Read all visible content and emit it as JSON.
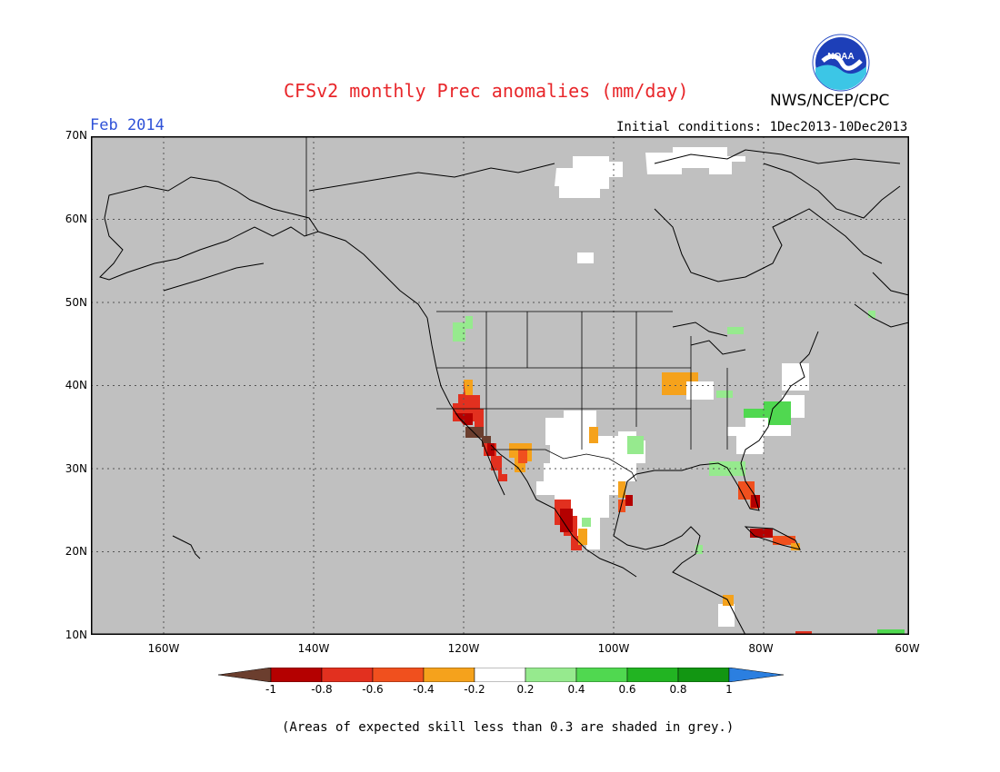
{
  "header": {
    "title": "CFSv2 monthly Prec anomalies (mm/day)",
    "agency": "NWS/NCEP/CPC",
    "logo_text": "NOAA",
    "valid_month": "Feb 2014",
    "initial_conditions": "Initial conditions: 1Dec2013-10Dec2013"
  },
  "map": {
    "projection": "lat-lon",
    "lon_range": [
      -172,
      -60
    ],
    "lat_range": [
      10,
      70
    ],
    "background_color": "#c0c0c0",
    "grid": "dotted",
    "lat_ticks": [
      "70N",
      "60N",
      "50N",
      "40N",
      "30N",
      "20N",
      "10N"
    ],
    "lon_ticks": [
      "160W",
      "140W",
      "120W",
      "100W",
      "80W",
      "60W"
    ]
  },
  "legend": {
    "tick_labels": [
      "-1",
      "-0.8",
      "-0.6",
      "-0.4",
      "-0.2",
      "0.2",
      "0.4",
      "0.6",
      "0.8",
      "1"
    ],
    "colors": [
      "#6b3e2e",
      "#b40000",
      "#e2301f",
      "#f0501e",
      "#f5a21c",
      "#ffffff",
      "#96ea8e",
      "#50d850",
      "#22b422",
      "#129612",
      "#2b7fe0"
    ]
  },
  "footnote": "(Areas of expected skill less than 0.3 are shaded in grey.)",
  "anomaly_regions": [
    {
      "name": "California coast",
      "class": "-0.6 to -0.8"
    },
    {
      "name": "Southern California",
      "class": "below -1"
    },
    {
      "name": "Baja California",
      "class": "-0.6 to -0.8"
    },
    {
      "name": "Arizona/Sonora",
      "class": "-0.2 to -0.4"
    },
    {
      "name": "West Mexico coast",
      "class": "-0.6 to -0.8"
    },
    {
      "name": "Texas / N Mexico",
      "class": "-0.2 to 0.2"
    },
    {
      "name": "Ohio Valley",
      "class": "-0.2 to -0.4"
    },
    {
      "name": "Southeast US",
      "class": "-0.2 to 0.2"
    },
    {
      "name": "Carolinas",
      "class": "0.4 to 0.6"
    },
    {
      "name": "South Florida",
      "class": "-0.6 to -0.8"
    },
    {
      "name": "Cuba",
      "class": "-0.6 to -0.8"
    },
    {
      "name": "Pacific Northwest",
      "class": "0.4 to 0.6"
    },
    {
      "name": "Northern Canada",
      "class": "-0.2 to 0.2"
    }
  ]
}
